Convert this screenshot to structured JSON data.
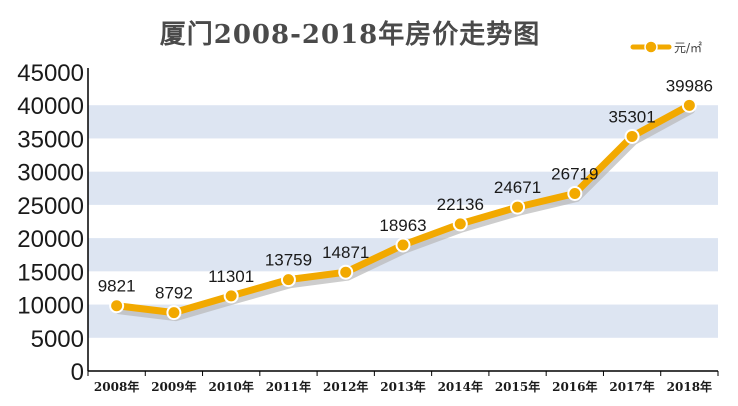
{
  "chart_data": {
    "type": "line",
    "title": "厦门2008-2018年房价走势图",
    "legend": {
      "label": "元/㎡",
      "placement": "top-right"
    },
    "categories": [
      "2008年",
      "2009年",
      "2010年",
      "2011年",
      "2012年",
      "2013年",
      "2014年",
      "2015年",
      "2016年",
      "2017年",
      "2018年"
    ],
    "series": [
      {
        "name": "元/㎡",
        "values": [
          9821,
          8792,
          11301,
          13759,
          14871,
          18963,
          22136,
          24671,
          26719,
          35301,
          39986
        ]
      }
    ],
    "yticks": [
      0,
      5000,
      10000,
      15000,
      20000,
      25000,
      30000,
      35000,
      40000,
      45000
    ],
    "ylim": [
      0,
      45000
    ],
    "xlabel": "",
    "ylabel": "",
    "colors": {
      "line": "#F2A900",
      "line_shadow": "#B8B8B8",
      "band": "#DDE5F2",
      "axis": "#000000"
    }
  }
}
